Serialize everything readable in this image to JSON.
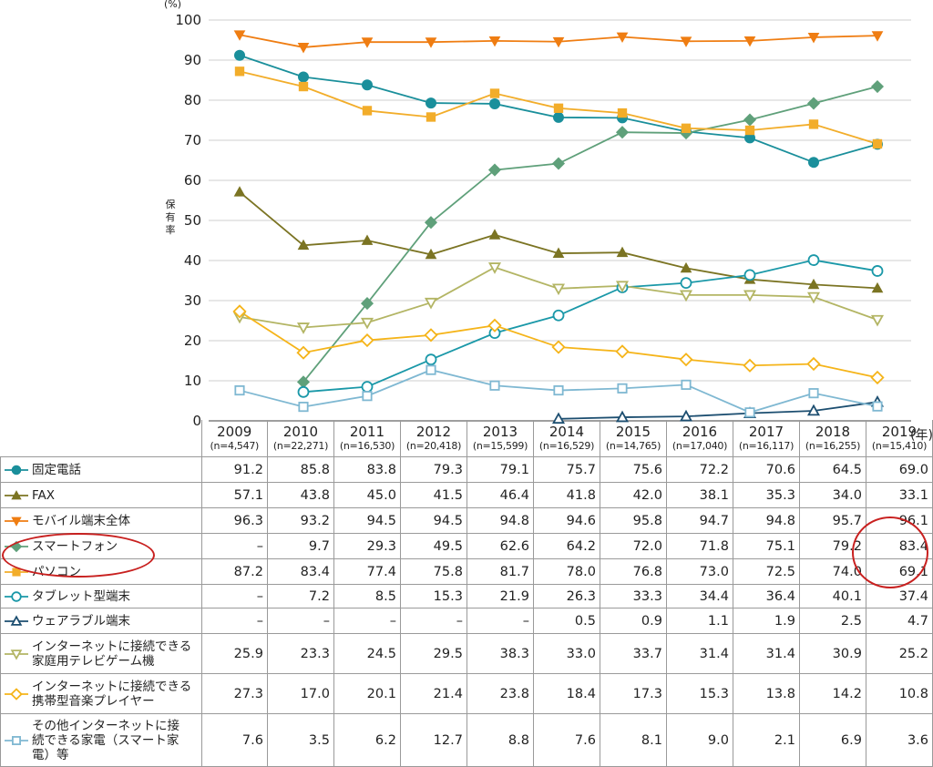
{
  "chart_data": {
    "type": "line",
    "ylabel": "保有率",
    "yunit": "(%)",
    "xunit": "(年)",
    "ylim": [
      0,
      100
    ],
    "yticks": [
      0,
      10,
      20,
      30,
      40,
      50,
      60,
      70,
      80,
      90,
      100
    ],
    "categories": [
      "2009",
      "2010",
      "2011",
      "2012",
      "2013",
      "2014",
      "2015",
      "2016",
      "2017",
      "2018",
      "2019"
    ],
    "sample_sizes": [
      "(n=4,547)",
      "(n=22,271)",
      "(n=16,530)",
      "(n=20,418)",
      "(n=15,599)",
      "(n=16,529)",
      "(n=14,765)",
      "(n=17,040)",
      "(n=16,117)",
      "(n=16,255)",
      "(n=15,410)"
    ],
    "series": [
      {
        "name": "固定電話",
        "color": "#1a8f9b",
        "marker": "circle-filled",
        "values": [
          91.2,
          85.8,
          83.8,
          79.3,
          79.1,
          75.7,
          75.6,
          72.2,
          70.6,
          64.5,
          69.0
        ],
        "display": [
          "91.2",
          "85.8",
          "83.8",
          "79.3",
          "79.1",
          "75.7",
          "75.6",
          "72.2",
          "70.6",
          "64.5",
          "69.0"
        ]
      },
      {
        "name": "FAX",
        "color": "#7b7423",
        "marker": "triangle-filled",
        "values": [
          57.1,
          43.8,
          45.0,
          41.5,
          46.4,
          41.8,
          42.0,
          38.1,
          35.3,
          34.0,
          33.1
        ],
        "display": [
          "57.1",
          "43.8",
          "45.0",
          "41.5",
          "46.4",
          "41.8",
          "42.0",
          "38.1",
          "35.3",
          "34.0",
          "33.1"
        ]
      },
      {
        "name": "モバイル端末全体",
        "color": "#ef7d12",
        "marker": "triangle-down-filled",
        "values": [
          96.3,
          93.2,
          94.5,
          94.5,
          94.8,
          94.6,
          95.8,
          94.7,
          94.8,
          95.7,
          96.1
        ],
        "display": [
          "96.3",
          "93.2",
          "94.5",
          "94.5",
          "94.8",
          "94.6",
          "95.8",
          "94.7",
          "94.8",
          "95.7",
          "96.1"
        ]
      },
      {
        "name": "スマートフォン",
        "color": "#5fa07a",
        "marker": "diamond-filled",
        "values": [
          null,
          9.7,
          29.3,
          49.5,
          62.6,
          64.2,
          72.0,
          71.8,
          75.1,
          79.2,
          83.4
        ],
        "display": [
          "–",
          "9.7",
          "29.3",
          "49.5",
          "62.6",
          "64.2",
          "72.0",
          "71.8",
          "75.1",
          "79.2",
          "83.4"
        ]
      },
      {
        "name": "パソコン",
        "color": "#f2ad2a",
        "marker": "square-filled",
        "values": [
          87.2,
          83.4,
          77.4,
          75.8,
          81.7,
          78.0,
          76.8,
          73.0,
          72.5,
          74.0,
          69.1
        ],
        "display": [
          "87.2",
          "83.4",
          "77.4",
          "75.8",
          "81.7",
          "78.0",
          "76.8",
          "73.0",
          "72.5",
          "74.0",
          "69.1"
        ]
      },
      {
        "name": "タブレット型端末",
        "color": "#1a98a8",
        "marker": "circle-open",
        "values": [
          null,
          7.2,
          8.5,
          15.3,
          21.9,
          26.3,
          33.3,
          34.4,
          36.4,
          40.1,
          37.4
        ],
        "display": [
          "–",
          "7.2",
          "8.5",
          "15.3",
          "21.9",
          "26.3",
          "33.3",
          "34.4",
          "36.4",
          "40.1",
          "37.4"
        ]
      },
      {
        "name": "ウェアラブル端末",
        "color": "#1c4e70",
        "marker": "triangle-open",
        "values": [
          null,
          null,
          null,
          null,
          null,
          0.5,
          0.9,
          1.1,
          1.9,
          2.5,
          4.7
        ],
        "display": [
          "–",
          "–",
          "–",
          "–",
          "–",
          "0.5",
          "0.9",
          "1.1",
          "1.9",
          "2.5",
          "4.7"
        ]
      },
      {
        "name": "インターネットに接続できる家庭用テレビゲーム機",
        "color": "#b3b564",
        "marker": "triangle-down-open",
        "lines": [
          "インターネットに接続できる",
          "家庭用テレビゲーム機"
        ],
        "values": [
          25.9,
          23.3,
          24.5,
          29.5,
          38.3,
          33.0,
          33.7,
          31.4,
          31.4,
          30.9,
          25.2
        ],
        "display": [
          "25.9",
          "23.3",
          "24.5",
          "29.5",
          "38.3",
          "33.0",
          "33.7",
          "31.4",
          "31.4",
          "30.9",
          "25.2"
        ]
      },
      {
        "name": "インターネットに接続できる携帯型音楽プレイヤー",
        "color": "#f5b419",
        "marker": "diamond-open",
        "lines": [
          "インターネットに接続できる",
          "携帯型音楽プレイヤー"
        ],
        "values": [
          27.3,
          17.0,
          20.1,
          21.4,
          23.8,
          18.4,
          17.3,
          15.3,
          13.8,
          14.2,
          10.8
        ],
        "display": [
          "27.3",
          "17.0",
          "20.1",
          "21.4",
          "23.8",
          "18.4",
          "17.3",
          "15.3",
          "13.8",
          "14.2",
          "10.8"
        ]
      },
      {
        "name": "その他インターネットに接続できる家電（スマート家電）等",
        "color": "#7fb8d2",
        "marker": "square-open",
        "lines": [
          "その他インターネットに接",
          "続できる家電（スマート家",
          "電）等"
        ],
        "values": [
          7.6,
          3.5,
          6.2,
          12.7,
          8.8,
          7.6,
          8.1,
          9.0,
          2.1,
          6.9,
          3.6
        ],
        "display": [
          "7.6",
          "3.5",
          "6.2",
          "12.7",
          "8.8",
          "7.6",
          "8.1",
          "9.0",
          "2.1",
          "6.9",
          "3.6"
        ]
      }
    ],
    "annotations": [
      {
        "type": "circle",
        "target": "row-label",
        "series": "スマートフォン / パソコン",
        "color": "#c8201f"
      },
      {
        "type": "circle",
        "target": "values-2019",
        "series": "スマートフォン / パソコン",
        "color": "#c8201f"
      }
    ]
  }
}
